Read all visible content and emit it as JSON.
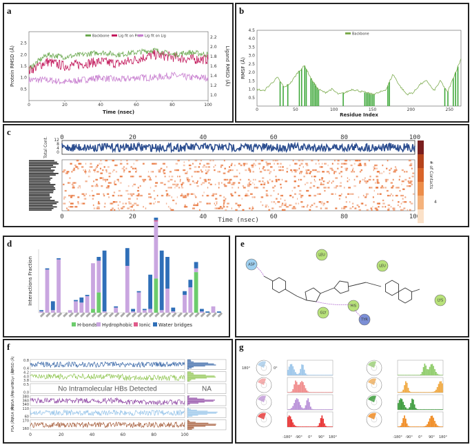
{
  "panels": {
    "a": "a",
    "b": "b",
    "c": "c",
    "d": "d",
    "e": "e",
    "f": "f",
    "g": "g"
  },
  "colors": {
    "backbone": "#6aa84f",
    "lig_prot": "#c2185b",
    "lig_lig": "#c77dcf",
    "rmsf": "#7cab4e",
    "contacts_dark": "#2b4d8f",
    "hbond": "#6ccc6c",
    "hydrophobic": "#c9a6e0",
    "ionic": "#e05a8a",
    "water": "#2f6fb8",
    "heat": "#e8743a"
  },
  "chart_data": [
    {
      "id": "a",
      "type": "line",
      "xlabel": "Time (nsec)",
      "ylabel": "Protein RMSD (Å)",
      "y2label": "Ligand RMSD (Å)",
      "xlim": [
        0,
        100
      ],
      "ylim": [
        0,
        3
      ],
      "x_ticks": [
        "0",
        "20",
        "40",
        "60",
        "80",
        "100"
      ],
      "y_ticks": [
        "0.5",
        "1.0",
        "1.5",
        "2.0",
        "2.5"
      ],
      "y2_ticks": [
        "1.0",
        "1.2",
        "1.4",
        "1.6",
        "1.8",
        "2.0",
        "2.2"
      ],
      "legend": [
        "Backbone",
        "Lig fit on Prot",
        "Lig fit on Lig"
      ],
      "series": [
        {
          "name": "Backbone",
          "mean": [
            1.4,
            2.0,
            1.9,
            2.0,
            2.1,
            2.0,
            2.1,
            2.2,
            2.0,
            2.1,
            2.0
          ],
          "noise": 0.12
        },
        {
          "name": "Lig fit on Prot",
          "mean": [
            1.3,
            1.7,
            1.5,
            1.6,
            1.7,
            1.6,
            1.8,
            2.0,
            1.9,
            1.8,
            1.8
          ],
          "noise": 0.22
        },
        {
          "name": "Lig fit on Lig",
          "mean": [
            0.9,
            0.9,
            0.8,
            0.9,
            1.0,
            0.9,
            1.0,
            1.0,
            1.1,
            1.0,
            1.0
          ],
          "noise": 0.15
        }
      ]
    },
    {
      "id": "b",
      "type": "line",
      "xlabel": "Residue Index",
      "ylabel": "RMSF (Å)",
      "xlim": [
        0,
        265
      ],
      "ylim": [
        0,
        4.5
      ],
      "x_ticks": [
        "0",
        "50",
        "100",
        "150",
        "200",
        "250"
      ],
      "y_ticks": [
        "0.5",
        "1.0",
        "1.5",
        "2.0",
        "2.5",
        "3.0",
        "3.5",
        "4.0",
        "4.5"
      ],
      "legend": [
        "Backbone"
      ],
      "x": [
        0,
        10,
        20,
        30,
        40,
        50,
        55,
        60,
        65,
        70,
        80,
        90,
        100,
        110,
        120,
        130,
        140,
        150,
        160,
        170,
        180,
        190,
        200,
        210,
        220,
        230,
        240,
        250,
        255,
        260,
        265
      ],
      "y": [
        1.0,
        0.9,
        1.3,
        1.7,
        1.1,
        1.4,
        2.0,
        2.4,
        1.6,
        1.0,
        0.8,
        1.0,
        0.7,
        0.8,
        1.0,
        0.9,
        0.8,
        0.7,
        0.8,
        1.0,
        1.9,
        1.2,
        0.7,
        0.8,
        1.3,
        1.5,
        0.9,
        1.5,
        0.8,
        1.8,
        2.8
      ],
      "contact_residues": [
        30,
        34,
        40,
        55,
        58,
        62,
        64,
        70,
        72,
        74,
        76,
        78,
        80,
        112,
        140,
        142,
        144,
        146,
        148,
        150,
        152,
        170,
        172,
        244,
        248,
        255,
        258,
        261
      ]
    },
    {
      "id": "c",
      "type": "heatmap",
      "xlabel": "Time (nsec)",
      "ylabel": "Total Cont.",
      "x_ticks": [
        "0",
        "20",
        "40",
        "60",
        "80",
        "100"
      ],
      "top_y_ticks": [
        "0",
        "4",
        "8",
        "12"
      ],
      "colorbar_label": "# of Contacts",
      "colorbar_ticks": [
        "4"
      ]
    },
    {
      "id": "d",
      "type": "bar",
      "ylabel": "Interactions Fraction",
      "ylim": [
        0,
        0.5
      ],
      "categories": [
        "A1",
        "A2",
        "A3",
        "A4",
        "A5",
        "A6",
        "A7",
        "A8",
        "A9",
        "A10",
        "A11",
        "A12",
        "A13",
        "A14",
        "A15",
        "A16",
        "A17",
        "A18",
        "A19",
        "A20",
        "A21",
        "A22",
        "A23",
        "A24",
        "A25",
        "A26",
        "A27",
        "A28",
        "A29",
        "A30",
        "A31",
        "A32"
      ],
      "series": [
        {
          "name": "H-bonds",
          "values": [
            0,
            0,
            0,
            0,
            0,
            0,
            0,
            0,
            0,
            0.03,
            0.16,
            0,
            0,
            0,
            0,
            0,
            0,
            0,
            0,
            0,
            0.27,
            0,
            0,
            0,
            0,
            0,
            0,
            0.32,
            0,
            0,
            0,
            0
          ]
        },
        {
          "name": "Hydrophobic",
          "values": [
            0.01,
            0.34,
            0.02,
            0.42,
            0,
            0.02,
            0.09,
            0.08,
            0.13,
            0.36,
            0.25,
            0.01,
            0,
            0.04,
            0,
            0.37,
            0.01,
            0.16,
            0.02,
            0.03,
            0.45,
            0.02,
            0.19,
            0.01,
            0,
            0.14,
            0.2,
            0.03,
            0.01,
            0,
            0.05,
            0
          ]
        },
        {
          "name": "Ionic",
          "values": [
            0,
            0,
            0,
            0,
            0,
            0,
            0,
            0,
            0,
            0,
            0,
            0,
            0,
            0,
            0,
            0,
            0,
            0,
            0,
            0,
            0.01,
            0,
            0,
            0,
            0,
            0,
            0,
            0,
            0,
            0,
            0,
            0
          ]
        },
        {
          "name": "Water bridges",
          "values": [
            0.01,
            0.01,
            0.07,
            0.01,
            0,
            0,
            0.01,
            0.04,
            0.01,
            0,
            0.03,
            0.48,
            0,
            0.01,
            0,
            0.14,
            0.02,
            0.01,
            0.01,
            0.27,
            0.02,
            0.47,
            0.25,
            0.03,
            0,
            0.03,
            0.06,
            0.05,
            0.02,
            0.01,
            0,
            0.01
          ]
        }
      ],
      "legend": [
        "H-bonds",
        "Hydrophobic",
        "Ionic",
        "Water bridges"
      ]
    },
    {
      "id": "f",
      "type": "line",
      "xlabel": "",
      "x_ticks": [
        "0",
        "20",
        "40",
        "60",
        "80",
        "100"
      ],
      "row_labels": [
        "RMSD (Å)",
        "rGyr (Å)",
        "intraHB",
        "MolSA (Å²)",
        "SASA (Å²)",
        "PSA (Å²)"
      ],
      "row_y_ticks": [
        [
          "0.8",
          "0.4"
        ],
        [
          "4.2",
          "4.0",
          "3.8"
        ],
        [
          "0.5",
          "0.0"
        ],
        [
          "380",
          "360",
          "340"
        ],
        [
          "110",
          "60"
        ],
        [
          "170",
          "160"
        ]
      ],
      "no_hb_text": "No Intramolecular HBs Detected",
      "na_text": "NA"
    },
    {
      "id": "g",
      "type": "histogram",
      "axis_ticks": [
        "-180°",
        "-90°",
        "0°",
        "90°",
        "180°"
      ],
      "dial_labels": [
        "180°",
        "0°"
      ]
    }
  ],
  "ligand_diagram": {
    "residues": [
      "ASP",
      "LEU",
      "LEU",
      "GLY",
      "HIS",
      "TYR",
      "LYS"
    ]
  }
}
